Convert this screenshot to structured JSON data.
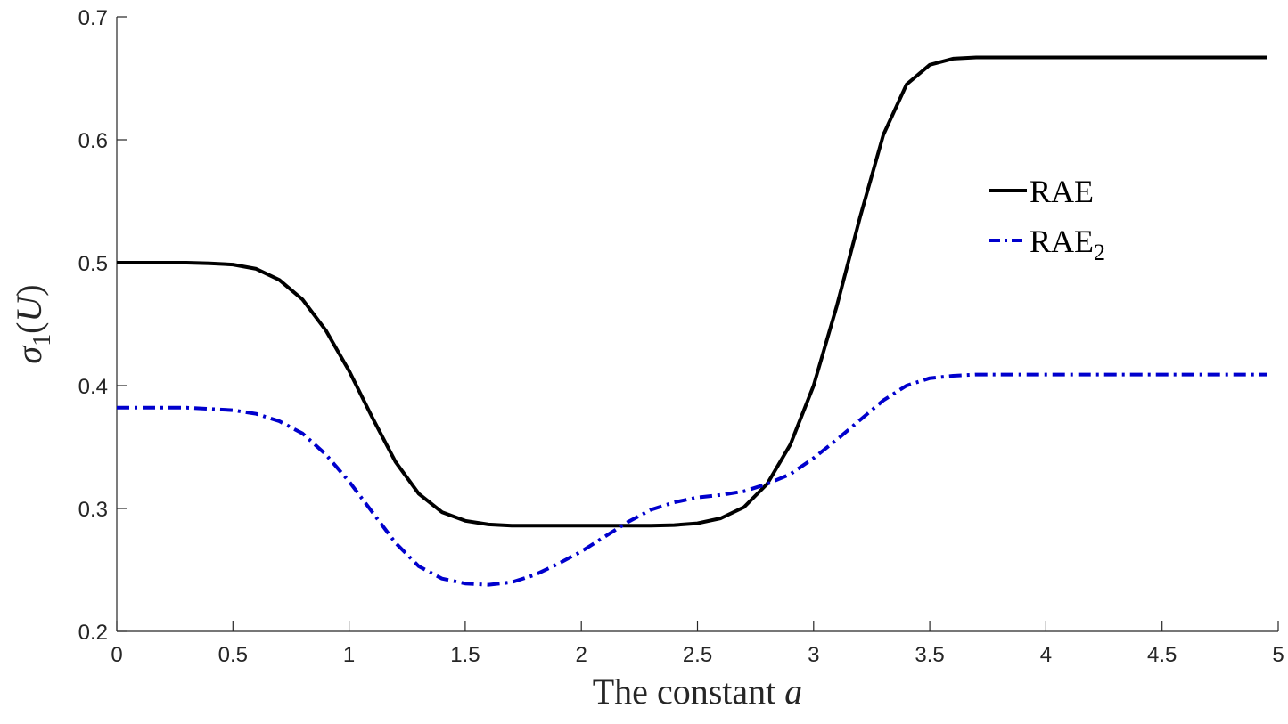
{
  "chart_data": {
    "type": "line",
    "title": "",
    "xlabel": "The constant ",
    "xlabel_var": "a",
    "ylabel": {
      "base": "σ",
      "sub": "1",
      "open": "(",
      "var": "U",
      "close": ")"
    },
    "xlim": [
      0,
      5
    ],
    "ylim": [
      0.2,
      0.7
    ],
    "xticks": [
      {
        "value": 0,
        "label": "0"
      },
      {
        "value": 0.5,
        "label": "0.5"
      },
      {
        "value": 1,
        "label": "1"
      },
      {
        "value": 1.5,
        "label": "1.5"
      },
      {
        "value": 2,
        "label": "2"
      },
      {
        "value": 2.5,
        "label": "2.5"
      },
      {
        "value": 3,
        "label": "3"
      },
      {
        "value": 3.5,
        "label": "3.5"
      },
      {
        "value": 4,
        "label": "4"
      },
      {
        "value": 4.5,
        "label": "4.5"
      },
      {
        "value": 5,
        "label": "5"
      }
    ],
    "yticks": [
      {
        "value": 0.2,
        "label": "0.2"
      },
      {
        "value": 0.3,
        "label": "0.3"
      },
      {
        "value": 0.4,
        "label": "0.4"
      },
      {
        "value": 0.5,
        "label": "0.5"
      },
      {
        "value": 0.6,
        "label": "0.6"
      },
      {
        "value": 0.7,
        "label": "0.7"
      }
    ],
    "grid": false,
    "legend_position": "upper-right inside",
    "series": [
      {
        "name": "RAE",
        "name_sub": "",
        "color": "#000000",
        "dash": "solid",
        "x": [
          0,
          0.1,
          0.2,
          0.3,
          0.4,
          0.5,
          0.6,
          0.7,
          0.8,
          0.9,
          1.0,
          1.1,
          1.2,
          1.3,
          1.4,
          1.5,
          1.6,
          1.7,
          1.8,
          1.9,
          2.0,
          2.1,
          2.2,
          2.3,
          2.4,
          2.5,
          2.6,
          2.7,
          2.8,
          2.9,
          3.0,
          3.1,
          3.2,
          3.3,
          3.4,
          3.5,
          3.6,
          3.7,
          3.8,
          3.9,
          4.0,
          4.1,
          4.2,
          4.3,
          4.4,
          4.5,
          4.6,
          4.7,
          4.8,
          4.9,
          4.95
        ],
        "y": [
          0.5,
          0.5,
          0.5,
          0.5,
          0.4995,
          0.4985,
          0.495,
          0.486,
          0.47,
          0.445,
          0.412,
          0.374,
          0.338,
          0.312,
          0.297,
          0.29,
          0.287,
          0.286,
          0.286,
          0.286,
          0.286,
          0.286,
          0.286,
          0.286,
          0.2865,
          0.288,
          0.292,
          0.301,
          0.32,
          0.352,
          0.4,
          0.465,
          0.537,
          0.604,
          0.645,
          0.661,
          0.666,
          0.667,
          0.667,
          0.667,
          0.667,
          0.667,
          0.667,
          0.667,
          0.667,
          0.667,
          0.667,
          0.667,
          0.667,
          0.667,
          0.667
        ]
      },
      {
        "name": "RAE",
        "name_sub": "2",
        "color": "#0000cd",
        "dash": "dash-dot",
        "x": [
          0,
          0.1,
          0.2,
          0.3,
          0.4,
          0.5,
          0.6,
          0.7,
          0.8,
          0.9,
          1.0,
          1.1,
          1.2,
          1.3,
          1.4,
          1.5,
          1.6,
          1.7,
          1.8,
          1.9,
          2.0,
          2.1,
          2.2,
          2.3,
          2.4,
          2.5,
          2.6,
          2.7,
          2.8,
          2.9,
          3.0,
          3.1,
          3.2,
          3.3,
          3.4,
          3.5,
          3.6,
          3.7,
          3.8,
          3.9,
          4.0,
          4.1,
          4.2,
          4.3,
          4.4,
          4.5,
          4.6,
          4.7,
          4.8,
          4.9,
          4.95
        ],
        "y": [
          0.382,
          0.382,
          0.382,
          0.382,
          0.381,
          0.38,
          0.377,
          0.371,
          0.361,
          0.344,
          0.322,
          0.297,
          0.272,
          0.253,
          0.243,
          0.239,
          0.238,
          0.24,
          0.246,
          0.255,
          0.265,
          0.277,
          0.289,
          0.299,
          0.305,
          0.309,
          0.311,
          0.314,
          0.32,
          0.328,
          0.341,
          0.356,
          0.372,
          0.388,
          0.4,
          0.406,
          0.408,
          0.409,
          0.409,
          0.409,
          0.409,
          0.409,
          0.409,
          0.409,
          0.409,
          0.409,
          0.409,
          0.409,
          0.409,
          0.409,
          0.409
        ]
      }
    ]
  }
}
